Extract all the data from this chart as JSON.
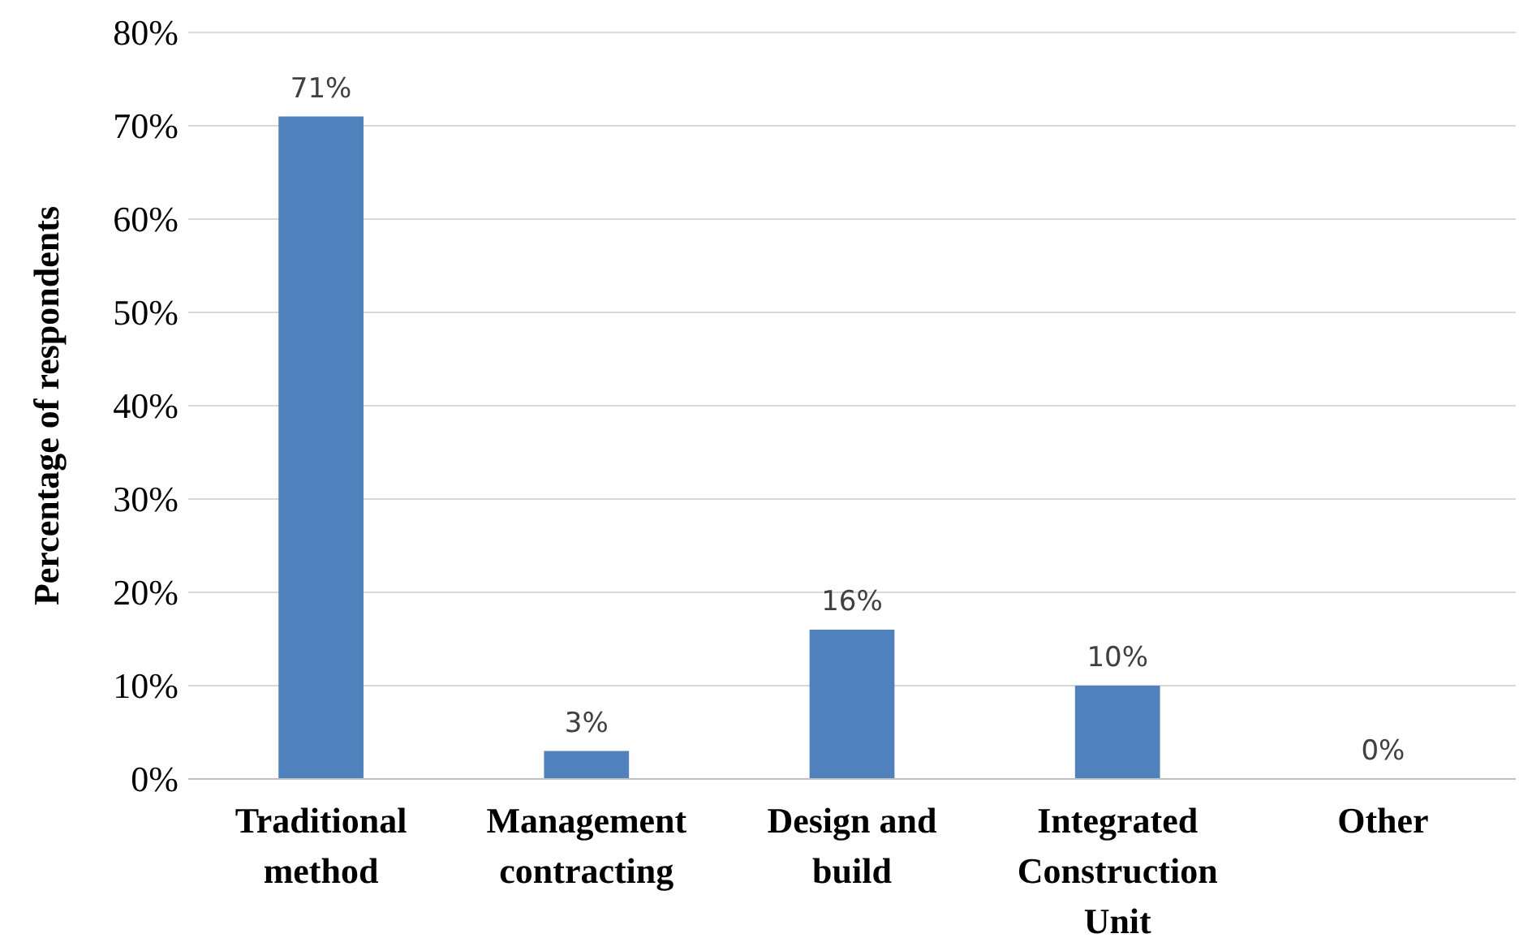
{
  "chart_data": {
    "type": "bar",
    "ylabel": "Percentage of respondents",
    "categories": [
      "Traditional method",
      "Management contracting",
      "Design and build",
      "Integrated Construction Unit",
      "Other"
    ],
    "values": [
      71,
      3,
      16,
      10,
      0
    ],
    "color": "#4f81bd",
    "value_labels": [
      "71%",
      "3%",
      "16%",
      "10%",
      "0%"
    ],
    "ylim": [
      0,
      80
    ],
    "yticks": [
      {
        "value": 0,
        "label": "0%"
      },
      {
        "value": 10,
        "label": "10%"
      },
      {
        "value": 20,
        "label": "20%"
      },
      {
        "value": 30,
        "label": "30%"
      },
      {
        "value": 40,
        "label": "40%"
      },
      {
        "value": 50,
        "label": "50%"
      },
      {
        "value": 60,
        "label": "60%"
      },
      {
        "value": 70,
        "label": "70%"
      },
      {
        "value": 80,
        "label": "80%"
      }
    ],
    "grid": "y"
  }
}
